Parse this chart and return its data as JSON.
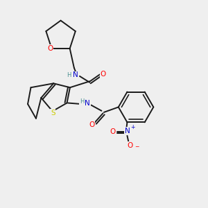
{
  "background_color": "#efefef",
  "fig_width": 3.0,
  "fig_height": 3.0,
  "dpi": 100,
  "bond_color": "#1a1a1a",
  "bond_lw": 1.4,
  "atom_colors": {
    "O": "#ff0000",
    "N": "#0000cc",
    "S": "#cccc00",
    "H": "#4a9090",
    "C": "#1a1a1a"
  },
  "font_size": 7.5,
  "font_size_small": 6.0,
  "font_size_charge": 5.5
}
